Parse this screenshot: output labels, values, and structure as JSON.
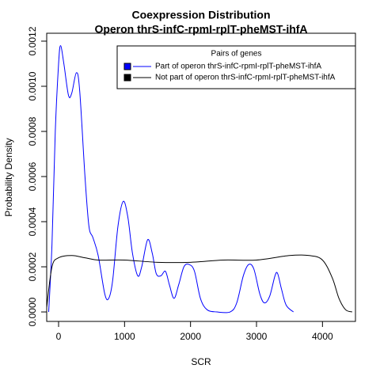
{
  "chart_data": {
    "type": "line",
    "title": "Coexpression Distribution",
    "subtitle": "Operon thrS-infC-rpmI-rplT-pheMST-ihfA",
    "x_label": "SCR",
    "y_label": "Probability Density",
    "xlim": [
      -180,
      4500
    ],
    "ylim": [
      -4.2e-05,
      0.001235
    ],
    "xticks": [
      0,
      1000,
      2000,
      3000,
      4000
    ],
    "yticks": [
      {
        "value": 0,
        "label": "0.0000"
      },
      {
        "value": 0.0002,
        "label": "0.0002"
      },
      {
        "value": 0.0004,
        "label": "0.0004"
      },
      {
        "value": 0.0006,
        "label": "0.0006"
      },
      {
        "value": 0.0008,
        "label": "0.0008"
      },
      {
        "value": 0.001,
        "label": "0.0010"
      },
      {
        "value": 0.0012,
        "label": "0.0012"
      }
    ],
    "legend_title": "Pairs of genes",
    "legend_position": "top-right",
    "series": [
      {
        "name": "Part of operon thrS-infC-rpmI-rplT-pheMST-ihfA",
        "color": "#0000ff",
        "x": [
          -150,
          -100,
          -50,
          0,
          30,
          80,
          150,
          200,
          270,
          320,
          400,
          460,
          520,
          600,
          700,
          760,
          820,
          900,
          980,
          1050,
          1120,
          1200,
          1260,
          1350,
          1420,
          1480,
          1550,
          1620,
          1680,
          1750,
          1820,
          1900,
          1980,
          2060,
          2150,
          2250,
          2400,
          2600,
          2700,
          2800,
          2880,
          2960,
          3050,
          3120,
          3200,
          3280,
          3320,
          3380,
          3450,
          3560
        ],
        "values": [
          0,
          0.0003,
          0.0008,
          0.0011,
          0.00118,
          0.0011,
          0.00096,
          0.00097,
          0.00106,
          0.00098,
          0.0006,
          0.00038,
          0.00033,
          0.00025,
          8e-05,
          6e-05,
          0.00014,
          0.00038,
          0.00049,
          0.00042,
          0.00026,
          0.00016,
          0.0002,
          0.00032,
          0.00026,
          0.00017,
          0.00016,
          0.00018,
          0.00012,
          6e-05,
          0.00012,
          0.0002,
          0.00021,
          0.00018,
          6e-05,
          1e-05,
          0,
          0,
          4e-05,
          0.00016,
          0.00021,
          0.00019,
          8e-05,
          4e-05,
          7e-05,
          0.00016,
          0.00017,
          0.0001,
          3e-05,
          0
        ]
      },
      {
        "name": "Not part of operon thrS-infC-rpmI-rplT-pheMST-ihfA",
        "color": "#000000",
        "x": [
          -180,
          -100,
          0,
          200,
          400,
          600,
          1000,
          1500,
          2000,
          2500,
          3000,
          3500,
          3800,
          4000,
          4150,
          4250,
          4350,
          4450
        ],
        "values": [
          2e-05,
          0.0002,
          0.00024,
          0.00025,
          0.00024,
          0.00023,
          0.00023,
          0.00022,
          0.00022,
          0.00023,
          0.00023,
          0.00025,
          0.00025,
          0.00023,
          0.00015,
          6e-05,
          1e-05,
          0
        ]
      }
    ]
  }
}
